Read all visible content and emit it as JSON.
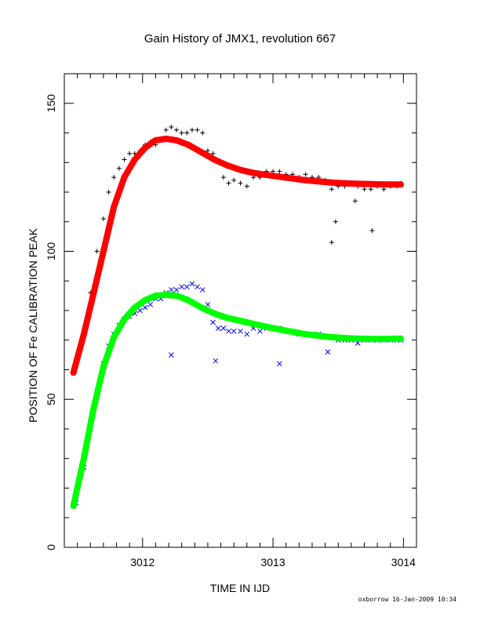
{
  "chart_data": {
    "type": "scatter",
    "title": "Gain History of JMX1, revolution 667",
    "xlabel": "TIME IN IJD",
    "ylabel": "POSITION OF Fe CALIBRATION PEAK",
    "xlim": [
      3011.4,
      3014.1
    ],
    "ylim": [
      0,
      160
    ],
    "x_ticks": [
      3012,
      3013,
      3014
    ],
    "x_tick_labels": [
      "3012",
      "3013",
      "3014"
    ],
    "y_ticks": [
      0,
      50,
      100,
      150
    ],
    "y_tick_labels": [
      "0",
      "50",
      "100",
      "150"
    ],
    "grid": false,
    "legend": "none",
    "series": [
      {
        "marker": "plus",
        "color": "#000000",
        "x": [
          3011.49,
          3011.55,
          3011.6,
          3011.65,
          3011.7,
          3011.74,
          3011.78,
          3011.82,
          3011.86,
          3011.9,
          3011.94,
          3011.98,
          3012.02,
          3012.06,
          3012.1,
          3012.14,
          3012.18,
          3012.22,
          3012.26,
          3012.3,
          3012.34,
          3012.38,
          3012.42,
          3012.46,
          3012.5,
          3012.54,
          3012.58,
          3012.62,
          3012.66,
          3012.7,
          3012.75,
          3012.8,
          3012.85,
          3012.9,
          3012.95,
          3013.0,
          3013.05,
          3013.1,
          3013.15,
          3013.2,
          3013.25,
          3013.3,
          3013.35,
          3013.4,
          3013.45,
          3013.5,
          3013.55,
          3013.6,
          3013.65,
          3013.7,
          3013.75,
          3013.8,
          3013.85,
          3013.9,
          3013.95,
          3013.98,
          3013.45,
          3013.76,
          3013.48,
          3013.63
        ],
        "y": [
          62,
          73,
          86,
          100,
          111,
          120,
          125,
          128,
          131,
          133,
          133,
          134,
          136,
          137,
          136,
          138,
          141,
          142,
          141,
          140,
          140,
          141,
          141,
          140,
          134,
          133,
          130,
          125,
          123,
          124,
          123,
          122,
          125,
          125,
          127,
          127,
          127,
          126,
          126,
          125,
          126,
          125,
          125,
          124,
          121,
          122,
          122,
          123,
          122,
          121,
          121,
          122,
          121,
          122,
          122,
          123,
          103,
          107,
          110,
          117
        ]
      },
      {
        "marker": "cross",
        "color": "#0000ff",
        "x": [
          3011.49,
          3011.55,
          3011.6,
          3011.65,
          3011.7,
          3011.74,
          3011.78,
          3011.82,
          3011.86,
          3011.9,
          3011.94,
          3011.98,
          3012.02,
          3012.06,
          3012.1,
          3012.14,
          3012.18,
          3012.22,
          3012.26,
          3012.3,
          3012.34,
          3012.38,
          3012.42,
          3012.46,
          3012.5,
          3012.54,
          3012.58,
          3012.62,
          3012.66,
          3012.7,
          3012.75,
          3012.8,
          3012.85,
          3012.9,
          3012.95,
          3013.0,
          3013.05,
          3013.1,
          3013.15,
          3013.2,
          3013.25,
          3013.3,
          3013.35,
          3013.4,
          3013.45,
          3013.5,
          3013.55,
          3013.6,
          3013.65,
          3013.7,
          3013.75,
          3013.8,
          3013.85,
          3013.9,
          3013.95,
          3013.98,
          3012.22,
          3012.56,
          3013.05,
          3013.42
        ],
        "y": [
          15,
          27,
          40,
          52,
          62,
          68,
          72,
          75,
          77,
          78,
          79,
          80,
          81,
          82,
          84,
          84,
          86,
          87,
          87,
          88,
          88,
          89,
          88,
          87,
          82,
          76,
          74,
          74,
          73,
          73,
          73,
          72,
          74,
          73,
          74,
          74,
          74,
          73,
          73,
          72,
          72,
          72,
          72,
          71,
          71,
          70,
          70,
          70,
          69,
          70,
          70,
          70,
          70,
          70,
          70,
          70,
          65,
          63,
          62,
          66
        ]
      },
      {
        "name": "",
        "marker": "fit",
        "color": "#ff0000",
        "x": [
          3011.47,
          3011.55,
          3011.62,
          3011.7,
          3011.78,
          3011.86,
          3011.94,
          3012.02,
          3012.1,
          3012.18,
          3012.26,
          3012.35,
          3012.45,
          3012.55,
          3012.65,
          3012.75,
          3012.85,
          3012.95,
          3013.05,
          3013.15,
          3013.25,
          3013.35,
          3013.45,
          3013.55,
          3013.65,
          3013.75,
          3013.85,
          3013.98
        ],
        "y": [
          59,
          72,
          85,
          100,
          115,
          125,
          131,
          135,
          137.5,
          138,
          137.5,
          136,
          133.5,
          131,
          129,
          127.5,
          126.5,
          125.8,
          125.2,
          124.6,
          124,
          123.6,
          123.2,
          123,
          122.8,
          122.7,
          122.6,
          122.6
        ]
      },
      {
        "name": "",
        "marker": "fit",
        "color": "#00ff00",
        "x": [
          3011.47,
          3011.55,
          3011.62,
          3011.7,
          3011.78,
          3011.86,
          3011.94,
          3012.02,
          3012.1,
          3012.18,
          3012.26,
          3012.35,
          3012.45,
          3012.55,
          3012.65,
          3012.75,
          3012.85,
          3012.95,
          3013.05,
          3013.15,
          3013.25,
          3013.35,
          3013.45,
          3013.55,
          3013.65,
          3013.75,
          3013.85,
          3013.98
        ],
        "y": [
          14,
          30,
          46,
          61,
          71,
          77,
          81,
          83.5,
          85,
          85.3,
          85,
          83.5,
          81,
          79,
          77.5,
          76.5,
          75.5,
          74.5,
          73.6,
          72.8,
          72,
          71.5,
          71,
          70.7,
          70.5,
          70.4,
          70.4,
          70.5
        ]
      }
    ]
  },
  "footer": "oxborrow 16-Jan-2009 10:34"
}
